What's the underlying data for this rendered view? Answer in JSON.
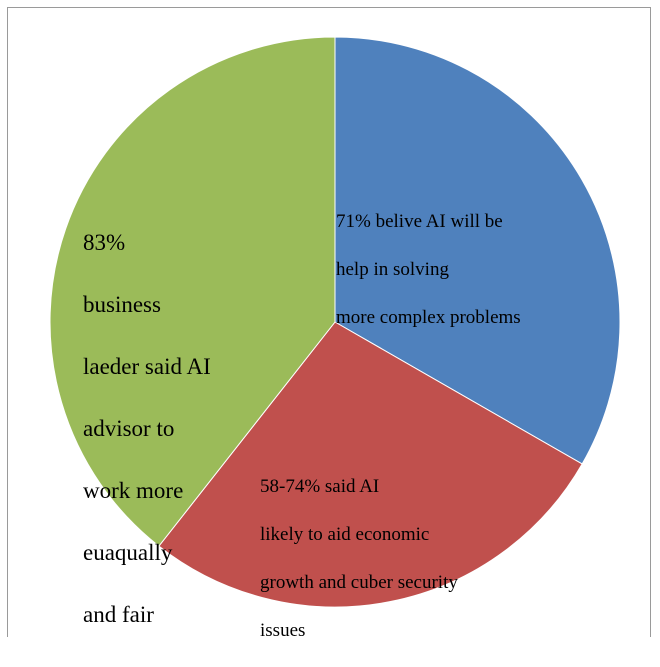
{
  "chart_data": {
    "type": "pie",
    "start_angle_deg": 0,
    "direction": "clockwise",
    "slices": [
      {
        "label_lines": [
          "71% belive AI will be",
          "help in solving",
          "more complex problems"
        ],
        "value": 33.3,
        "color": "#4f81bd"
      },
      {
        "label_lines": [
          "58-74% said AI",
          "likely to aid economic",
          "growth and cuber security",
          "issues"
        ],
        "value": 27.3,
        "color": "#c0504d"
      },
      {
        "label_lines": [
          "83%",
          "business",
          "laeder said AI",
          "advisor to",
          "work more",
          "euaqually",
          "and fair"
        ],
        "value": 39.4,
        "color": "#9bbb59"
      }
    ]
  }
}
